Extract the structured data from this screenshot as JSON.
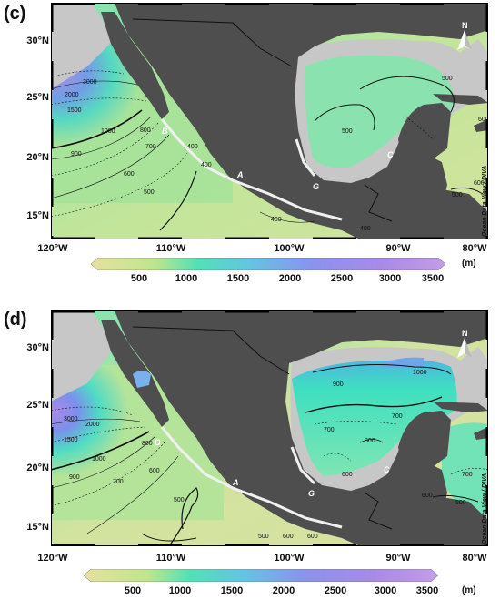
{
  "panels": [
    {
      "label": "(c)",
      "lat_labels": [
        "30°N",
        "25°N",
        "20°N",
        "15°N"
      ],
      "lon_labels": [
        "120°W",
        "110°W",
        "100°W",
        "90°W",
        "80°W"
      ],
      "north_label": "N",
      "credit": "Ocean Data View / DIVA",
      "site_labels": [
        "A",
        "B",
        "C",
        "G"
      ],
      "contour_labels": [
        "3000",
        "2000",
        "1500",
        "1000",
        "900",
        "800",
        "700",
        "600",
        "500",
        "400",
        "400",
        "400",
        "400",
        "500",
        "500",
        "600",
        "600",
        "500"
      ]
    },
    {
      "label": "(d)",
      "lat_labels": [
        "30°N",
        "25°N",
        "20°N",
        "15°N"
      ],
      "lon_labels": [
        "120°W",
        "110°W",
        "100°W",
        "90°W",
        "80°W"
      ],
      "north_label": "N",
      "credit": "Ocean Data View / DIVA",
      "site_labels": [
        "A",
        "B",
        "C",
        "G"
      ],
      "contour_labels": [
        "3000",
        "2000",
        "1500",
        "1000",
        "900",
        "800",
        "700",
        "600",
        "500",
        "500",
        "600",
        "600",
        "900",
        "1000",
        "700",
        "800",
        "700",
        "600",
        "600",
        "700",
        "500"
      ]
    }
  ],
  "colorbar": {
    "ticks": [
      "500",
      "1000",
      "1500",
      "2000",
      "2500",
      "3000",
      "3500"
    ],
    "unit": "(m)",
    "colors": [
      "#e6e29f",
      "#bfe58d",
      "#52e1b5",
      "#64c4e4",
      "#8a93ef",
      "#a98ae8",
      "#c49de6"
    ]
  },
  "colors": {
    "land": "#4e4e4e",
    "shelf": "#c7c7c7",
    "frame": "#000000"
  }
}
